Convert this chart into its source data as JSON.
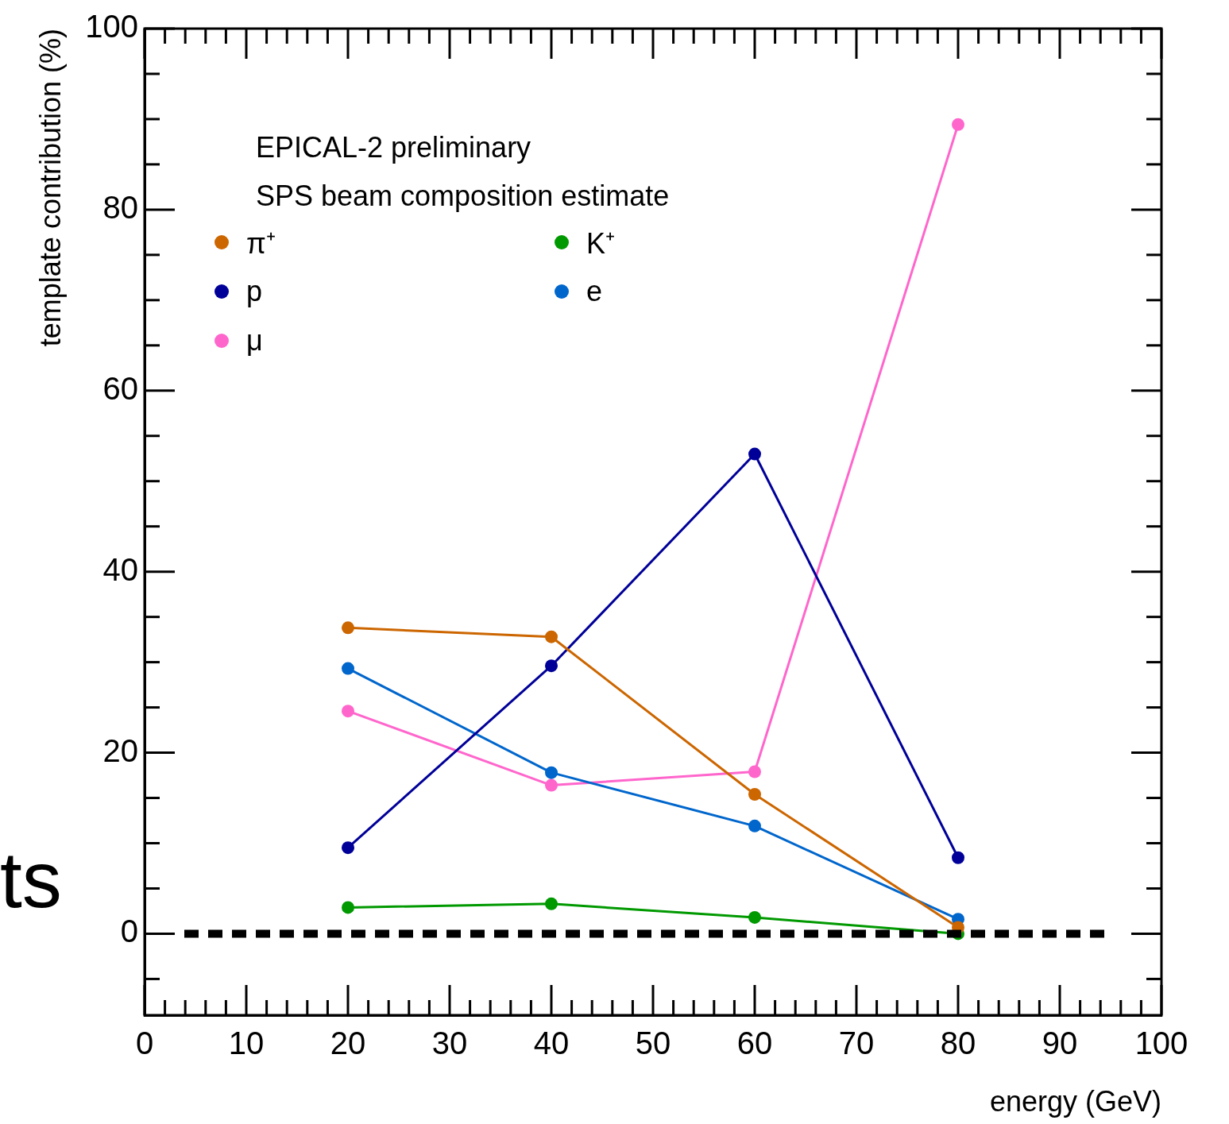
{
  "chart_data": {
    "type": "line",
    "xlabel": "energy (GeV)",
    "ylabel": "template contribution (%)",
    "x": [
      20,
      40,
      60,
      80
    ],
    "series": [
      {
        "name": "π⁺",
        "color": "#cc6600",
        "values": [
          33.8,
          32.8,
          15.4,
          0.7
        ]
      },
      {
        "name": "K⁺",
        "color": "#009900",
        "values": [
          2.9,
          3.3,
          1.8,
          0
        ]
      },
      {
        "name": "p",
        "color": "#000099",
        "values": [
          9.5,
          29.6,
          53.0,
          8.4
        ]
      },
      {
        "name": "e",
        "color": "#0066cc",
        "values": [
          29.3,
          17.8,
          11.9,
          1.6
        ]
      },
      {
        "name": "μ",
        "color": "#ff66cc",
        "values": [
          24.6,
          16.4,
          17.9,
          89.4
        ]
      }
    ],
    "xlim": [
      0,
      100
    ],
    "xticks": [
      0,
      10,
      20,
      30,
      40,
      50,
      60,
      70,
      80,
      90,
      100
    ],
    "ylim": [
      -9,
      100
    ],
    "yticks": [
      0,
      20,
      40,
      60,
      80,
      100
    ],
    "ref_lines": [
      {
        "axis": "y",
        "value": 0,
        "color": "#000000",
        "line_style": "dashed"
      }
    ],
    "annotations": [
      "EPICAL-2 preliminary",
      "SPS beam composition estimate",
      "ts"
    ],
    "legend": "top left",
    "grid": false,
    "marker": "circle",
    "line_style": "solid"
  }
}
